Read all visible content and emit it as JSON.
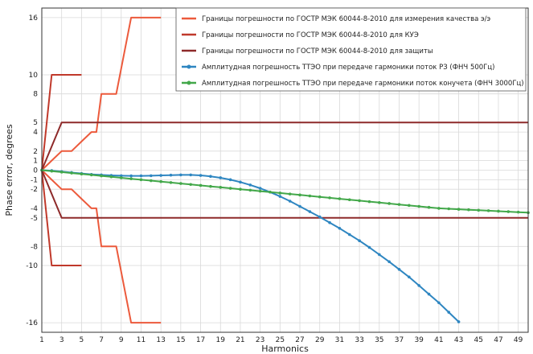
{
  "chart_data": {
    "type": "line",
    "title": "",
    "xlabel": "Harmonics",
    "ylabel": "Phase error, degrees",
    "xlim": [
      1,
      50
    ],
    "ylim": [
      -17,
      17
    ],
    "grid": true,
    "legend_position": "top-right",
    "x_ticks": [
      1,
      3,
      5,
      7,
      9,
      11,
      13,
      15,
      17,
      19,
      21,
      23,
      25,
      27,
      29,
      31,
      33,
      35,
      37,
      39,
      41,
      43,
      45,
      47,
      49
    ],
    "y_ticks": [
      16,
      10,
      8,
      5,
      4,
      2,
      1,
      0,
      -1,
      -2,
      -4,
      -5,
      -8,
      -10,
      -16
    ],
    "series": [
      {
        "name": "Границы погрешности по ГОСТР МЭК 60044-8-2010 для измерения качества э/э",
        "color": "#ec5a3c",
        "markers": false,
        "segments": [
          [
            [
              1,
              0
            ],
            [
              2,
              1
            ],
            [
              3,
              2
            ],
            [
              4,
              2
            ],
            [
              5,
              3
            ],
            [
              6,
              4
            ],
            [
              6.5,
              4
            ],
            [
              7,
              8
            ],
            [
              8.5,
              8
            ],
            [
              10,
              16
            ],
            [
              13,
              16
            ]
          ],
          [
            [
              1,
              0
            ],
            [
              2,
              -1
            ],
            [
              3,
              -2
            ],
            [
              4,
              -2
            ],
            [
              5,
              -3
            ],
            [
              6,
              -4
            ],
            [
              6.5,
              -4
            ],
            [
              7,
              -8
            ],
            [
              8.5,
              -8
            ],
            [
              10,
              -16
            ],
            [
              13,
              -16
            ]
          ]
        ]
      },
      {
        "name": "Границы погрешности по ГОСТР МЭК 60044-8-2010 для КУЭ",
        "color": "#c0392b",
        "markers": false,
        "segments": [
          [
            [
              1,
              0
            ],
            [
              2,
              10
            ],
            [
              5,
              10
            ]
          ],
          [
            [
              1,
              0
            ],
            [
              2,
              -10
            ],
            [
              5,
              -10
            ]
          ]
        ]
      },
      {
        "name": "Границы погрешности по ГОСТР МЭК 60044-8-2010 для защиты",
        "color": "#8e2a2a",
        "markers": false,
        "segments": [
          [
            [
              1,
              0
            ],
            [
              3,
              5
            ],
            [
              50,
              5
            ]
          ],
          [
            [
              1,
              0
            ],
            [
              3,
              -5
            ],
            [
              50,
              -5
            ]
          ]
        ]
      },
      {
        "name": "Амплитудная погрешность ТТЭО при передаче гармоники поток РЗ (ФНЧ 500Гц)",
        "color": "#2e86c1",
        "markers": true,
        "x": [
          1,
          2,
          3,
          4,
          5,
          6,
          7,
          8,
          9,
          10,
          11,
          12,
          13,
          14,
          15,
          16,
          17,
          18,
          19,
          20,
          21,
          22,
          23,
          24,
          25,
          26,
          27,
          28,
          29,
          30,
          31,
          32,
          33,
          34,
          35,
          36,
          37,
          38,
          39,
          40,
          41,
          42,
          43
        ],
        "values": [
          0,
          -0.05,
          -0.15,
          -0.25,
          -0.35,
          -0.45,
          -0.5,
          -0.55,
          -0.58,
          -0.6,
          -0.6,
          -0.58,
          -0.55,
          -0.52,
          -0.5,
          -0.5,
          -0.55,
          -0.65,
          -0.8,
          -1.0,
          -1.25,
          -1.55,
          -1.9,
          -2.3,
          -2.75,
          -3.25,
          -3.8,
          -4.35,
          -4.9,
          -5.5,
          -6.1,
          -6.75,
          -7.4,
          -8.1,
          -8.85,
          -9.6,
          -10.4,
          -11.2,
          -12.1,
          -13.0,
          -13.9,
          -14.9,
          -15.9
        ]
      },
      {
        "name": "Амплитудная погрешность ТТЭО при передаче гармоники поток конучета  (ФНЧ 3000Гц)",
        "color": "#43a84a",
        "markers": true,
        "x": [
          1,
          2,
          3,
          4,
          5,
          6,
          7,
          8,
          9,
          10,
          11,
          12,
          13,
          14,
          15,
          16,
          17,
          18,
          19,
          20,
          21,
          22,
          23,
          24,
          25,
          26,
          27,
          28,
          29,
          30,
          31,
          32,
          33,
          34,
          35,
          36,
          37,
          38,
          39,
          40,
          41,
          42,
          43,
          44,
          45,
          46,
          47,
          48,
          49,
          50
        ],
        "values": [
          0,
          -0.1,
          -0.2,
          -0.3,
          -0.4,
          -0.5,
          -0.6,
          -0.7,
          -0.8,
          -0.9,
          -1.0,
          -1.1,
          -1.2,
          -1.3,
          -1.4,
          -1.5,
          -1.6,
          -1.7,
          -1.8,
          -1.9,
          -2.0,
          -2.1,
          -2.2,
          -2.3,
          -2.4,
          -2.5,
          -2.6,
          -2.7,
          -2.8,
          -2.9,
          -3.0,
          -3.1,
          -3.2,
          -3.3,
          -3.4,
          -3.5,
          -3.6,
          -3.7,
          -3.8,
          -3.9,
          -4.0,
          -4.05,
          -4.1,
          -4.15,
          -4.2,
          -4.25,
          -4.3,
          -4.35,
          -4.4,
          -4.45
        ]
      }
    ]
  }
}
